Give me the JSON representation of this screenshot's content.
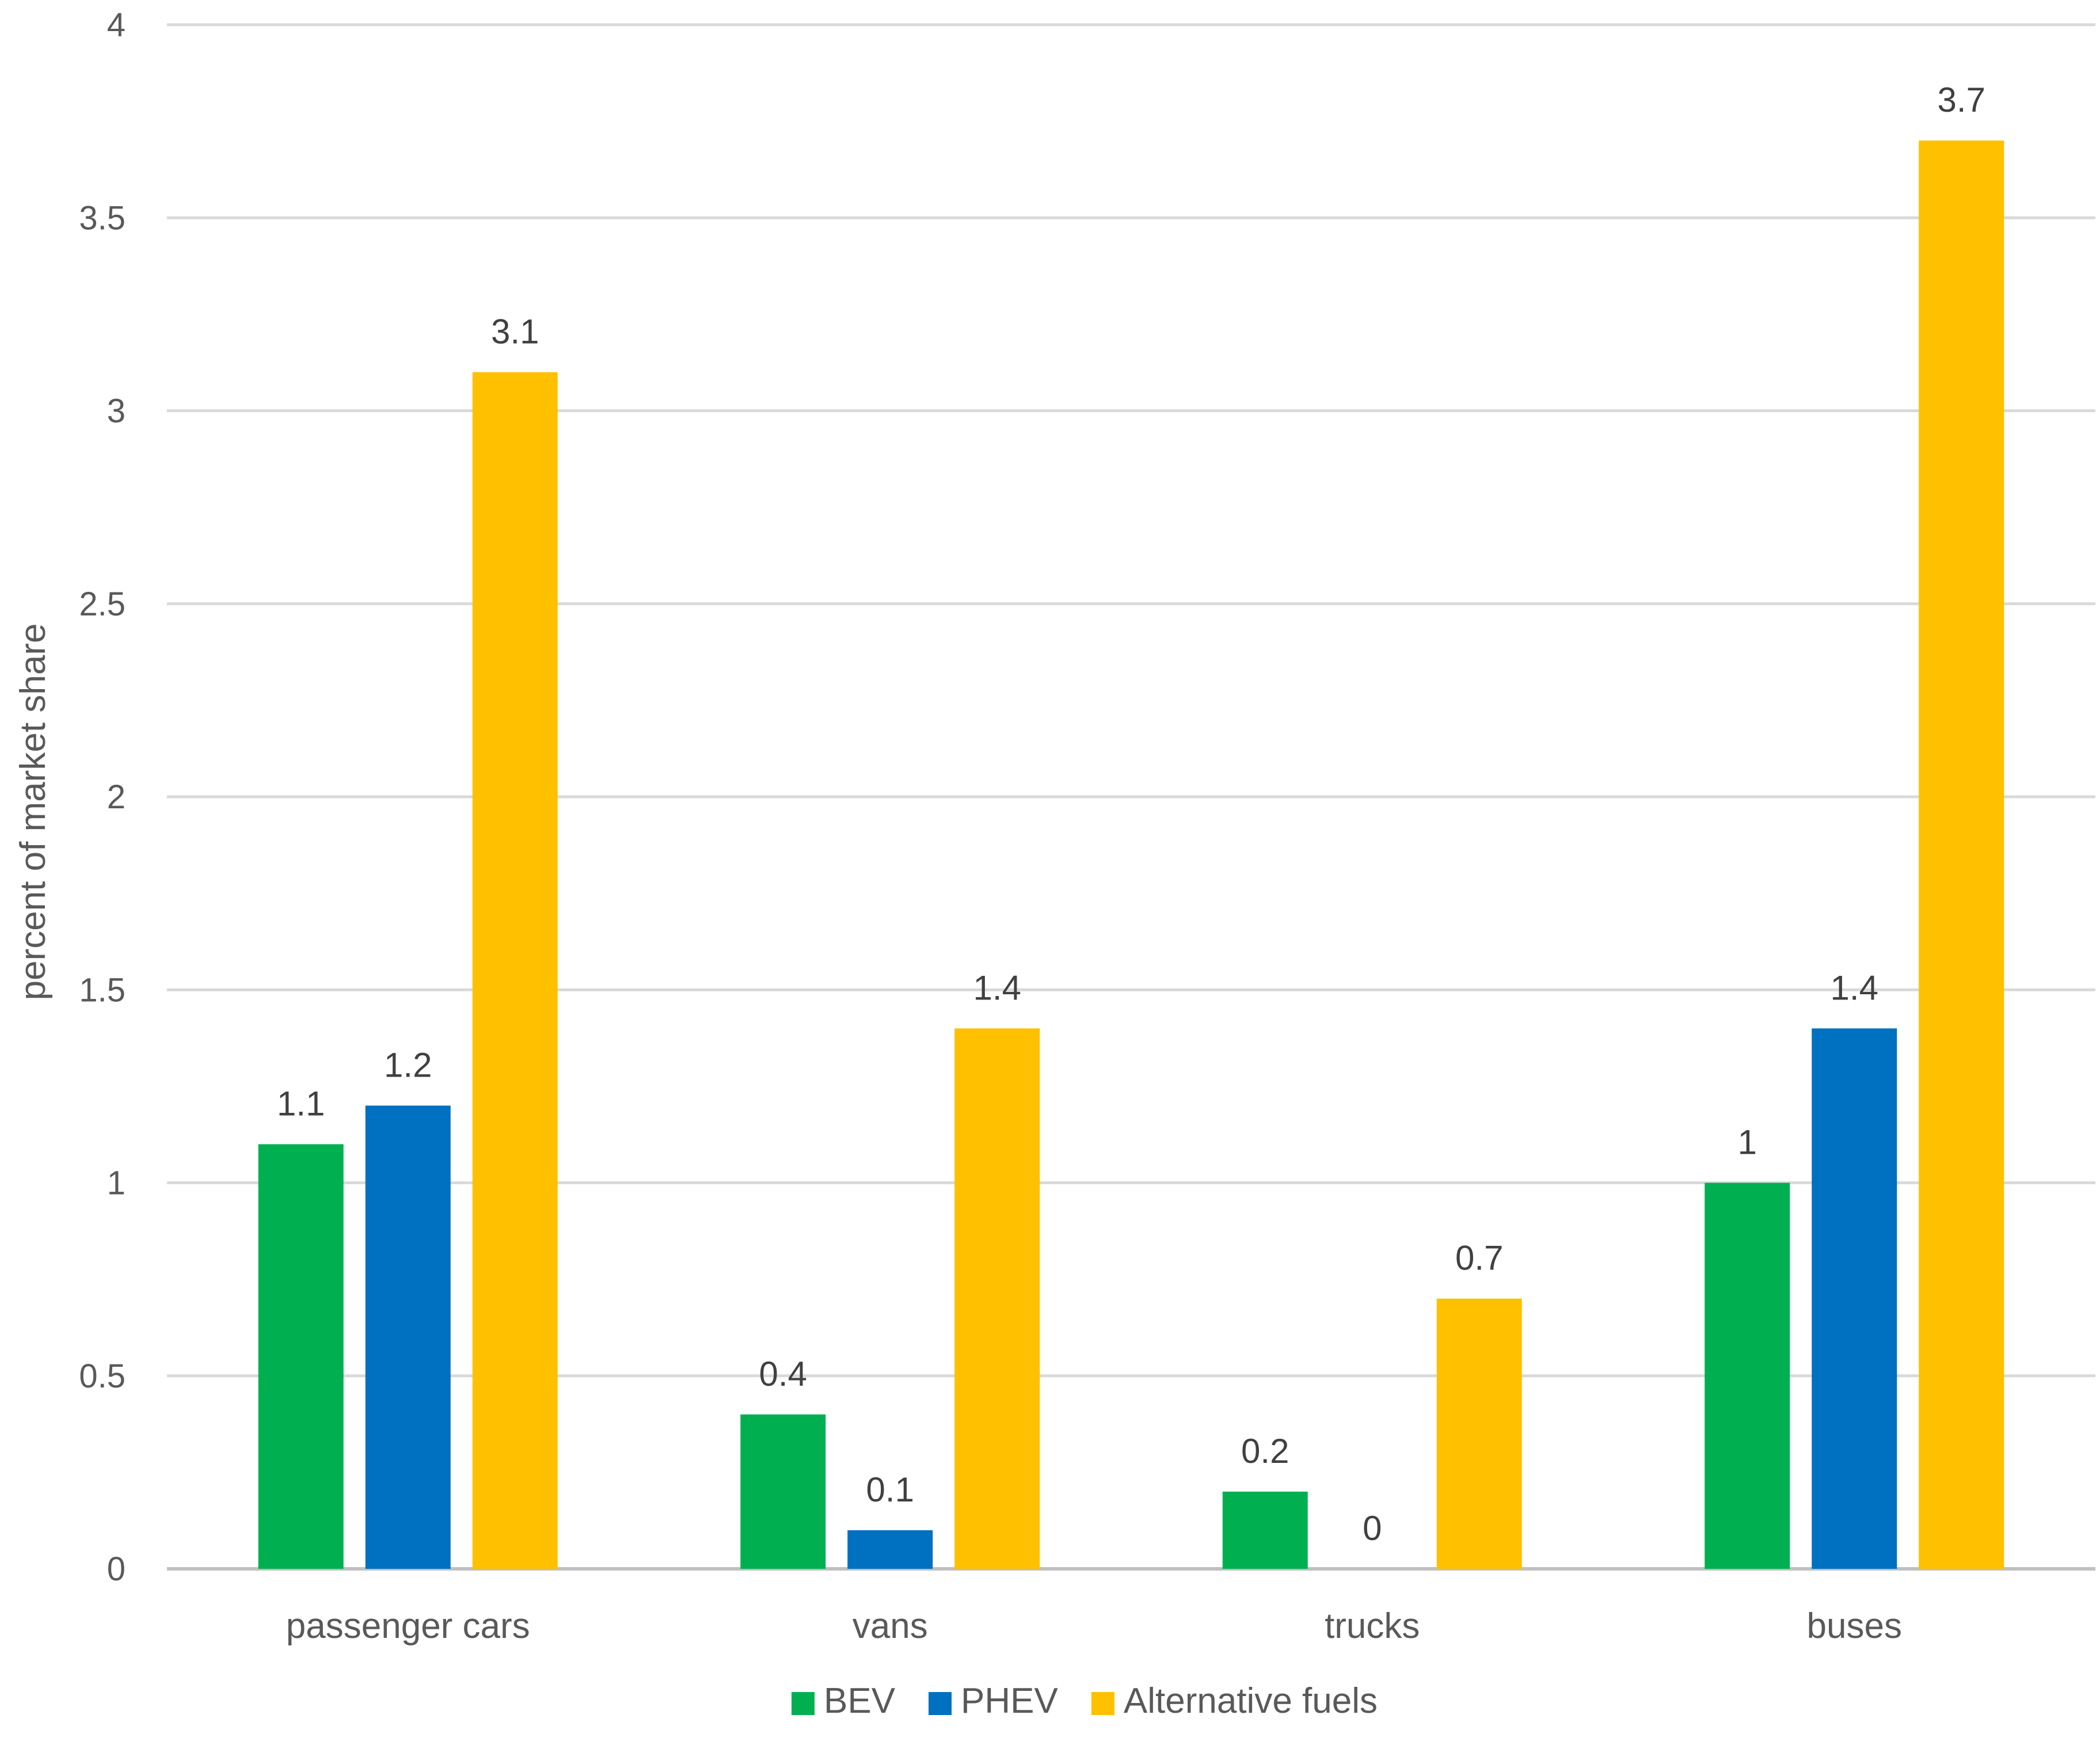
{
  "chart_data": {
    "type": "bar",
    "title": "",
    "xlabel": "",
    "ylabel": "percent of market share",
    "ylim": [
      0,
      4
    ],
    "yticks": [
      0,
      0.5,
      1,
      1.5,
      2,
      2.5,
      3,
      3.5,
      4
    ],
    "ytick_labels": [
      "0",
      "0.5",
      "1",
      "1.5",
      "2",
      "2.5",
      "3",
      "3.5",
      "4"
    ],
    "grid": true,
    "legend_position": "bottom",
    "categories": [
      "passenger cars",
      "vans",
      "trucks",
      "buses"
    ],
    "series": [
      {
        "name": "BEV",
        "color": "#00b050",
        "values": [
          1.1,
          0.4,
          0.2,
          1
        ],
        "labels": [
          "1.1",
          "0.4",
          "0.2",
          "1"
        ]
      },
      {
        "name": "PHEV",
        "color": "#0070c0",
        "values": [
          1.2,
          0.1,
          0,
          1.4
        ],
        "labels": [
          "1.2",
          "0.1",
          "0",
          "1.4"
        ]
      },
      {
        "name": "Alternative fuels",
        "color": "#ffc000",
        "values": [
          3.1,
          1.4,
          0.7,
          3.7
        ],
        "labels": [
          "3.1",
          "1.4",
          "0.7",
          "3.7"
        ]
      }
    ]
  }
}
